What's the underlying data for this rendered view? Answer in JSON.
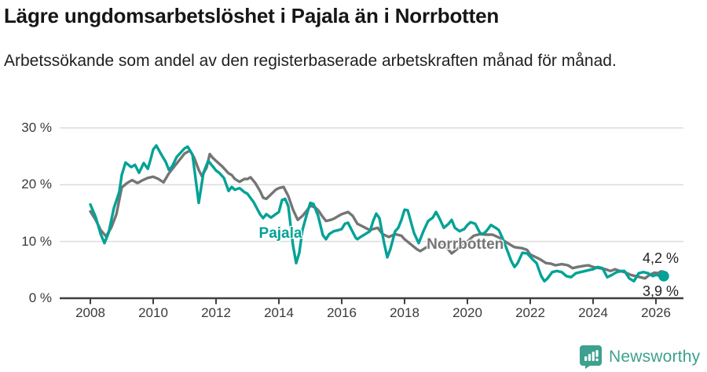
{
  "header": {
    "title": "Lägre ungdomsarbetslöshet i Pajala än i Norrbotten",
    "subtitle": "Arbetssökande som andel av den registerbaserade arbetskraften månad för månad."
  },
  "chart_data": {
    "type": "line",
    "title": "Lägre ungdomsarbetslöshet i Pajala än i Norrbotten",
    "subtitle": "Arbetssökande som andel av den registerbaserade arbetskraften månad för månad.",
    "unit": "%",
    "x_unit": "year",
    "xlim": [
      2008,
      2026.6
    ],
    "ylim": [
      0,
      31
    ],
    "grid": "horizontal",
    "yticks": [
      {
        "value": 30,
        "label": "30 %"
      },
      {
        "value": 20,
        "label": "20 %"
      },
      {
        "value": 10,
        "label": "10 %"
      },
      {
        "value": 0,
        "label": "0 %"
      }
    ],
    "xticks": [
      {
        "value": 2008,
        "label": "2008"
      },
      {
        "value": 2010,
        "label": "2010"
      },
      {
        "value": 2012,
        "label": "2012"
      },
      {
        "value": 2014,
        "label": "2014"
      },
      {
        "value": 2016,
        "label": "2016"
      },
      {
        "value": 2018,
        "label": "2018"
      },
      {
        "value": 2020,
        "label": "2020"
      },
      {
        "value": 2022,
        "label": "2022"
      },
      {
        "value": 2024,
        "label": "2024"
      },
      {
        "value": 2026,
        "label": "2026"
      }
    ],
    "series": [
      {
        "name": "Norrbotten",
        "color": "#757575",
        "label_anchor": [
          2019.93,
          9.4
        ],
        "end_label": "4,2 %",
        "end_value": 4.2,
        "end_label_dy": -31,
        "end_dot_r": 5.5,
        "points": [
          [
            2008.0,
            15.3
          ],
          [
            2008.17,
            13.8
          ],
          [
            2008.33,
            12.0
          ],
          [
            2008.5,
            10.9
          ],
          [
            2008.67,
            12.5
          ],
          [
            2008.83,
            14.8
          ],
          [
            2009.0,
            19.5
          ],
          [
            2009.17,
            20.3
          ],
          [
            2009.33,
            20.8
          ],
          [
            2009.5,
            20.3
          ],
          [
            2009.67,
            20.8
          ],
          [
            2009.83,
            21.2
          ],
          [
            2010.0,
            21.4
          ],
          [
            2010.17,
            21.0
          ],
          [
            2010.33,
            20.4
          ],
          [
            2010.5,
            22.0
          ],
          [
            2010.67,
            23.2
          ],
          [
            2010.83,
            24.3
          ],
          [
            2011.0,
            25.5
          ],
          [
            2011.17,
            26.0
          ],
          [
            2011.3,
            24.8
          ],
          [
            2011.45,
            22.6
          ],
          [
            2011.55,
            21.5
          ],
          [
            2011.7,
            23.0
          ],
          [
            2011.8,
            25.4
          ],
          [
            2011.9,
            24.7
          ],
          [
            2012.0,
            24.2
          ],
          [
            2012.2,
            23.2
          ],
          [
            2012.4,
            22.0
          ],
          [
            2012.5,
            21.7
          ],
          [
            2012.6,
            21.0
          ],
          [
            2012.75,
            20.5
          ],
          [
            2012.9,
            21.0
          ],
          [
            2013.0,
            21.0
          ],
          [
            2013.1,
            21.3
          ],
          [
            2013.25,
            20.3
          ],
          [
            2013.4,
            18.9
          ],
          [
            2013.5,
            17.7
          ],
          [
            2013.6,
            17.5
          ],
          [
            2013.75,
            18.3
          ],
          [
            2013.9,
            19.1
          ],
          [
            2014.0,
            19.4
          ],
          [
            2014.15,
            19.6
          ],
          [
            2014.3,
            18.0
          ],
          [
            2014.45,
            15.6
          ],
          [
            2014.6,
            13.8
          ],
          [
            2014.75,
            14.5
          ],
          [
            2014.9,
            15.5
          ],
          [
            2015.0,
            16.3
          ],
          [
            2015.15,
            16.0
          ],
          [
            2015.25,
            15.5
          ],
          [
            2015.4,
            14.3
          ],
          [
            2015.5,
            13.6
          ],
          [
            2015.65,
            13.8
          ],
          [
            2015.75,
            14.0
          ],
          [
            2015.9,
            14.5
          ],
          [
            2016.0,
            14.8
          ],
          [
            2016.2,
            15.2
          ],
          [
            2016.35,
            14.5
          ],
          [
            2016.5,
            13.1
          ],
          [
            2016.65,
            12.7
          ],
          [
            2016.75,
            12.4
          ],
          [
            2016.9,
            12.0
          ],
          [
            2017.0,
            12.2
          ],
          [
            2017.15,
            12.4
          ],
          [
            2017.3,
            11.3
          ],
          [
            2017.5,
            10.8
          ],
          [
            2017.7,
            11.3
          ],
          [
            2017.9,
            11.0
          ],
          [
            2018.0,
            10.4
          ],
          [
            2018.2,
            9.5
          ],
          [
            2018.4,
            8.6
          ],
          [
            2018.5,
            8.3
          ],
          [
            2018.7,
            9.0
          ],
          [
            2018.9,
            9.7
          ],
          [
            2019.0,
            10.0
          ],
          [
            2019.25,
            9.5
          ],
          [
            2019.5,
            7.9
          ],
          [
            2019.75,
            9.0
          ],
          [
            2020.0,
            10.0
          ],
          [
            2020.2,
            11.0
          ],
          [
            2020.4,
            11.3
          ],
          [
            2020.6,
            11.2
          ],
          [
            2020.8,
            11.2
          ],
          [
            2021.0,
            10.7
          ],
          [
            2021.2,
            10.0
          ],
          [
            2021.4,
            9.3
          ],
          [
            2021.5,
            9.0
          ],
          [
            2021.75,
            8.8
          ],
          [
            2021.9,
            8.5
          ],
          [
            2022.0,
            7.7
          ],
          [
            2022.15,
            7.3
          ],
          [
            2022.3,
            6.9
          ],
          [
            2022.5,
            6.2
          ],
          [
            2022.65,
            6.1
          ],
          [
            2022.8,
            5.8
          ],
          [
            2023.0,
            6.0
          ],
          [
            2023.2,
            5.8
          ],
          [
            2023.35,
            5.3
          ],
          [
            2023.5,
            5.5
          ],
          [
            2023.7,
            5.7
          ],
          [
            2023.85,
            5.8
          ],
          [
            2024.0,
            5.5
          ],
          [
            2024.2,
            5.3
          ],
          [
            2024.4,
            5.1
          ],
          [
            2024.55,
            4.8
          ],
          [
            2024.7,
            5.1
          ],
          [
            2024.85,
            4.8
          ],
          [
            2025.0,
            4.6
          ],
          [
            2025.2,
            4.1
          ],
          [
            2025.35,
            3.9
          ],
          [
            2025.5,
            3.7
          ],
          [
            2025.65,
            3.5
          ],
          [
            2025.8,
            4.1
          ],
          [
            2025.95,
            4.5
          ],
          [
            2026.1,
            4.4
          ],
          [
            2026.18,
            4.2
          ]
        ]
      },
      {
        "name": "Pajala",
        "color": "#00A296",
        "label_anchor": [
          2014.05,
          11.35
        ],
        "end_label": "3,9 %",
        "end_value": 3.9,
        "end_label_dy": 9,
        "end_dot_r": 6.8,
        "points": [
          [
            2008.0,
            16.5
          ],
          [
            2008.17,
            14.3
          ],
          [
            2008.33,
            11.3
          ],
          [
            2008.45,
            9.7
          ],
          [
            2008.58,
            11.5
          ],
          [
            2008.75,
            15.9
          ],
          [
            2008.92,
            18.7
          ],
          [
            2009.0,
            21.7
          ],
          [
            2009.12,
            23.9
          ],
          [
            2009.3,
            23.1
          ],
          [
            2009.42,
            23.5
          ],
          [
            2009.55,
            22.1
          ],
          [
            2009.7,
            23.8
          ],
          [
            2009.83,
            22.8
          ],
          [
            2009.92,
            24.5
          ],
          [
            2010.0,
            26.2
          ],
          [
            2010.1,
            26.9
          ],
          [
            2010.25,
            25.4
          ],
          [
            2010.4,
            24.0
          ],
          [
            2010.5,
            22.6
          ],
          [
            2010.6,
            23.2
          ],
          [
            2010.75,
            24.9
          ],
          [
            2010.9,
            25.8
          ],
          [
            2011.0,
            26.4
          ],
          [
            2011.1,
            26.7
          ],
          [
            2011.25,
            25.3
          ],
          [
            2011.45,
            16.8
          ],
          [
            2011.6,
            22.1
          ],
          [
            2011.75,
            24.2
          ],
          [
            2011.9,
            23.2
          ],
          [
            2012.0,
            22.5
          ],
          [
            2012.1,
            22.1
          ],
          [
            2012.25,
            21.2
          ],
          [
            2012.4,
            18.9
          ],
          [
            2012.5,
            19.6
          ],
          [
            2012.6,
            19.1
          ],
          [
            2012.75,
            19.4
          ],
          [
            2012.9,
            18.7
          ],
          [
            2013.0,
            18.4
          ],
          [
            2013.2,
            16.9
          ],
          [
            2013.4,
            14.8
          ],
          [
            2013.5,
            14.1
          ],
          [
            2013.6,
            14.8
          ],
          [
            2013.75,
            14.2
          ],
          [
            2013.9,
            14.8
          ],
          [
            2014.0,
            15.2
          ],
          [
            2014.1,
            17.3
          ],
          [
            2014.2,
            17.5
          ],
          [
            2014.3,
            16.2
          ],
          [
            2014.45,
            9.3
          ],
          [
            2014.55,
            6.2
          ],
          [
            2014.65,
            8.0
          ],
          [
            2014.75,
            12.0
          ],
          [
            2014.9,
            15.0
          ],
          [
            2015.0,
            16.8
          ],
          [
            2015.1,
            16.6
          ],
          [
            2015.25,
            14.5
          ],
          [
            2015.4,
            11.1
          ],
          [
            2015.5,
            10.4
          ],
          [
            2015.6,
            11.3
          ],
          [
            2015.75,
            11.8
          ],
          [
            2015.9,
            12.0
          ],
          [
            2016.0,
            12.2
          ],
          [
            2016.1,
            13.1
          ],
          [
            2016.2,
            13.3
          ],
          [
            2016.3,
            12.2
          ],
          [
            2016.45,
            10.6
          ],
          [
            2016.5,
            10.4
          ],
          [
            2016.6,
            10.8
          ],
          [
            2016.75,
            11.3
          ],
          [
            2016.9,
            11.8
          ],
          [
            2017.0,
            13.6
          ],
          [
            2017.1,
            14.9
          ],
          [
            2017.2,
            14.1
          ],
          [
            2017.35,
            9.7
          ],
          [
            2017.45,
            7.2
          ],
          [
            2017.55,
            8.7
          ],
          [
            2017.7,
            11.8
          ],
          [
            2017.8,
            12.4
          ],
          [
            2017.9,
            13.8
          ],
          [
            2018.0,
            15.6
          ],
          [
            2018.1,
            15.5
          ],
          [
            2018.3,
            11.5
          ],
          [
            2018.45,
            9.7
          ],
          [
            2018.6,
            11.8
          ],
          [
            2018.75,
            13.6
          ],
          [
            2018.9,
            14.2
          ],
          [
            2019.0,
            15.2
          ],
          [
            2019.1,
            14.2
          ],
          [
            2019.25,
            12.4
          ],
          [
            2019.4,
            13.1
          ],
          [
            2019.5,
            13.8
          ],
          [
            2019.6,
            12.4
          ],
          [
            2019.75,
            11.8
          ],
          [
            2019.9,
            12.2
          ],
          [
            2020.0,
            12.9
          ],
          [
            2020.1,
            13.4
          ],
          [
            2020.25,
            13.1
          ],
          [
            2020.4,
            11.5
          ],
          [
            2020.5,
            11.3
          ],
          [
            2020.6,
            11.8
          ],
          [
            2020.75,
            12.9
          ],
          [
            2020.9,
            12.4
          ],
          [
            2021.0,
            12.0
          ],
          [
            2021.1,
            10.8
          ],
          [
            2021.25,
            8.7
          ],
          [
            2021.4,
            6.5
          ],
          [
            2021.5,
            5.5
          ],
          [
            2021.6,
            6.2
          ],
          [
            2021.75,
            8.0
          ],
          [
            2021.9,
            7.9
          ],
          [
            2022.0,
            7.3
          ],
          [
            2022.1,
            6.7
          ],
          [
            2022.2,
            6.2
          ],
          [
            2022.35,
            3.9
          ],
          [
            2022.45,
            3.0
          ],
          [
            2022.55,
            3.5
          ],
          [
            2022.7,
            4.6
          ],
          [
            2022.85,
            4.8
          ],
          [
            2023.0,
            4.6
          ],
          [
            2023.15,
            3.9
          ],
          [
            2023.3,
            3.7
          ],
          [
            2023.45,
            4.4
          ],
          [
            2023.6,
            4.6
          ],
          [
            2023.75,
            4.8
          ],
          [
            2023.9,
            5.0
          ],
          [
            2024.0,
            5.1
          ],
          [
            2024.15,
            5.5
          ],
          [
            2024.3,
            5.3
          ],
          [
            2024.45,
            3.7
          ],
          [
            2024.6,
            4.1
          ],
          [
            2024.75,
            4.6
          ],
          [
            2024.9,
            4.8
          ],
          [
            2025.0,
            4.8
          ],
          [
            2025.15,
            3.5
          ],
          [
            2025.3,
            3.0
          ],
          [
            2025.45,
            4.4
          ],
          [
            2025.6,
            4.6
          ],
          [
            2025.75,
            4.4
          ],
          [
            2025.9,
            3.9
          ],
          [
            2026.0,
            4.1
          ],
          [
            2026.25,
            3.9
          ]
        ]
      }
    ]
  },
  "footer": {
    "brand": "Newsworthy",
    "brand_color": "#3EA08F",
    "logo_icon": "bar-chart-speech-bubble-icon"
  },
  "colors": {
    "pajala": "#00A296",
    "norrbotten": "#757575",
    "grid": "#dcdcdc",
    "axis": "#3f3f3f",
    "text": "#3a3a3a"
  }
}
